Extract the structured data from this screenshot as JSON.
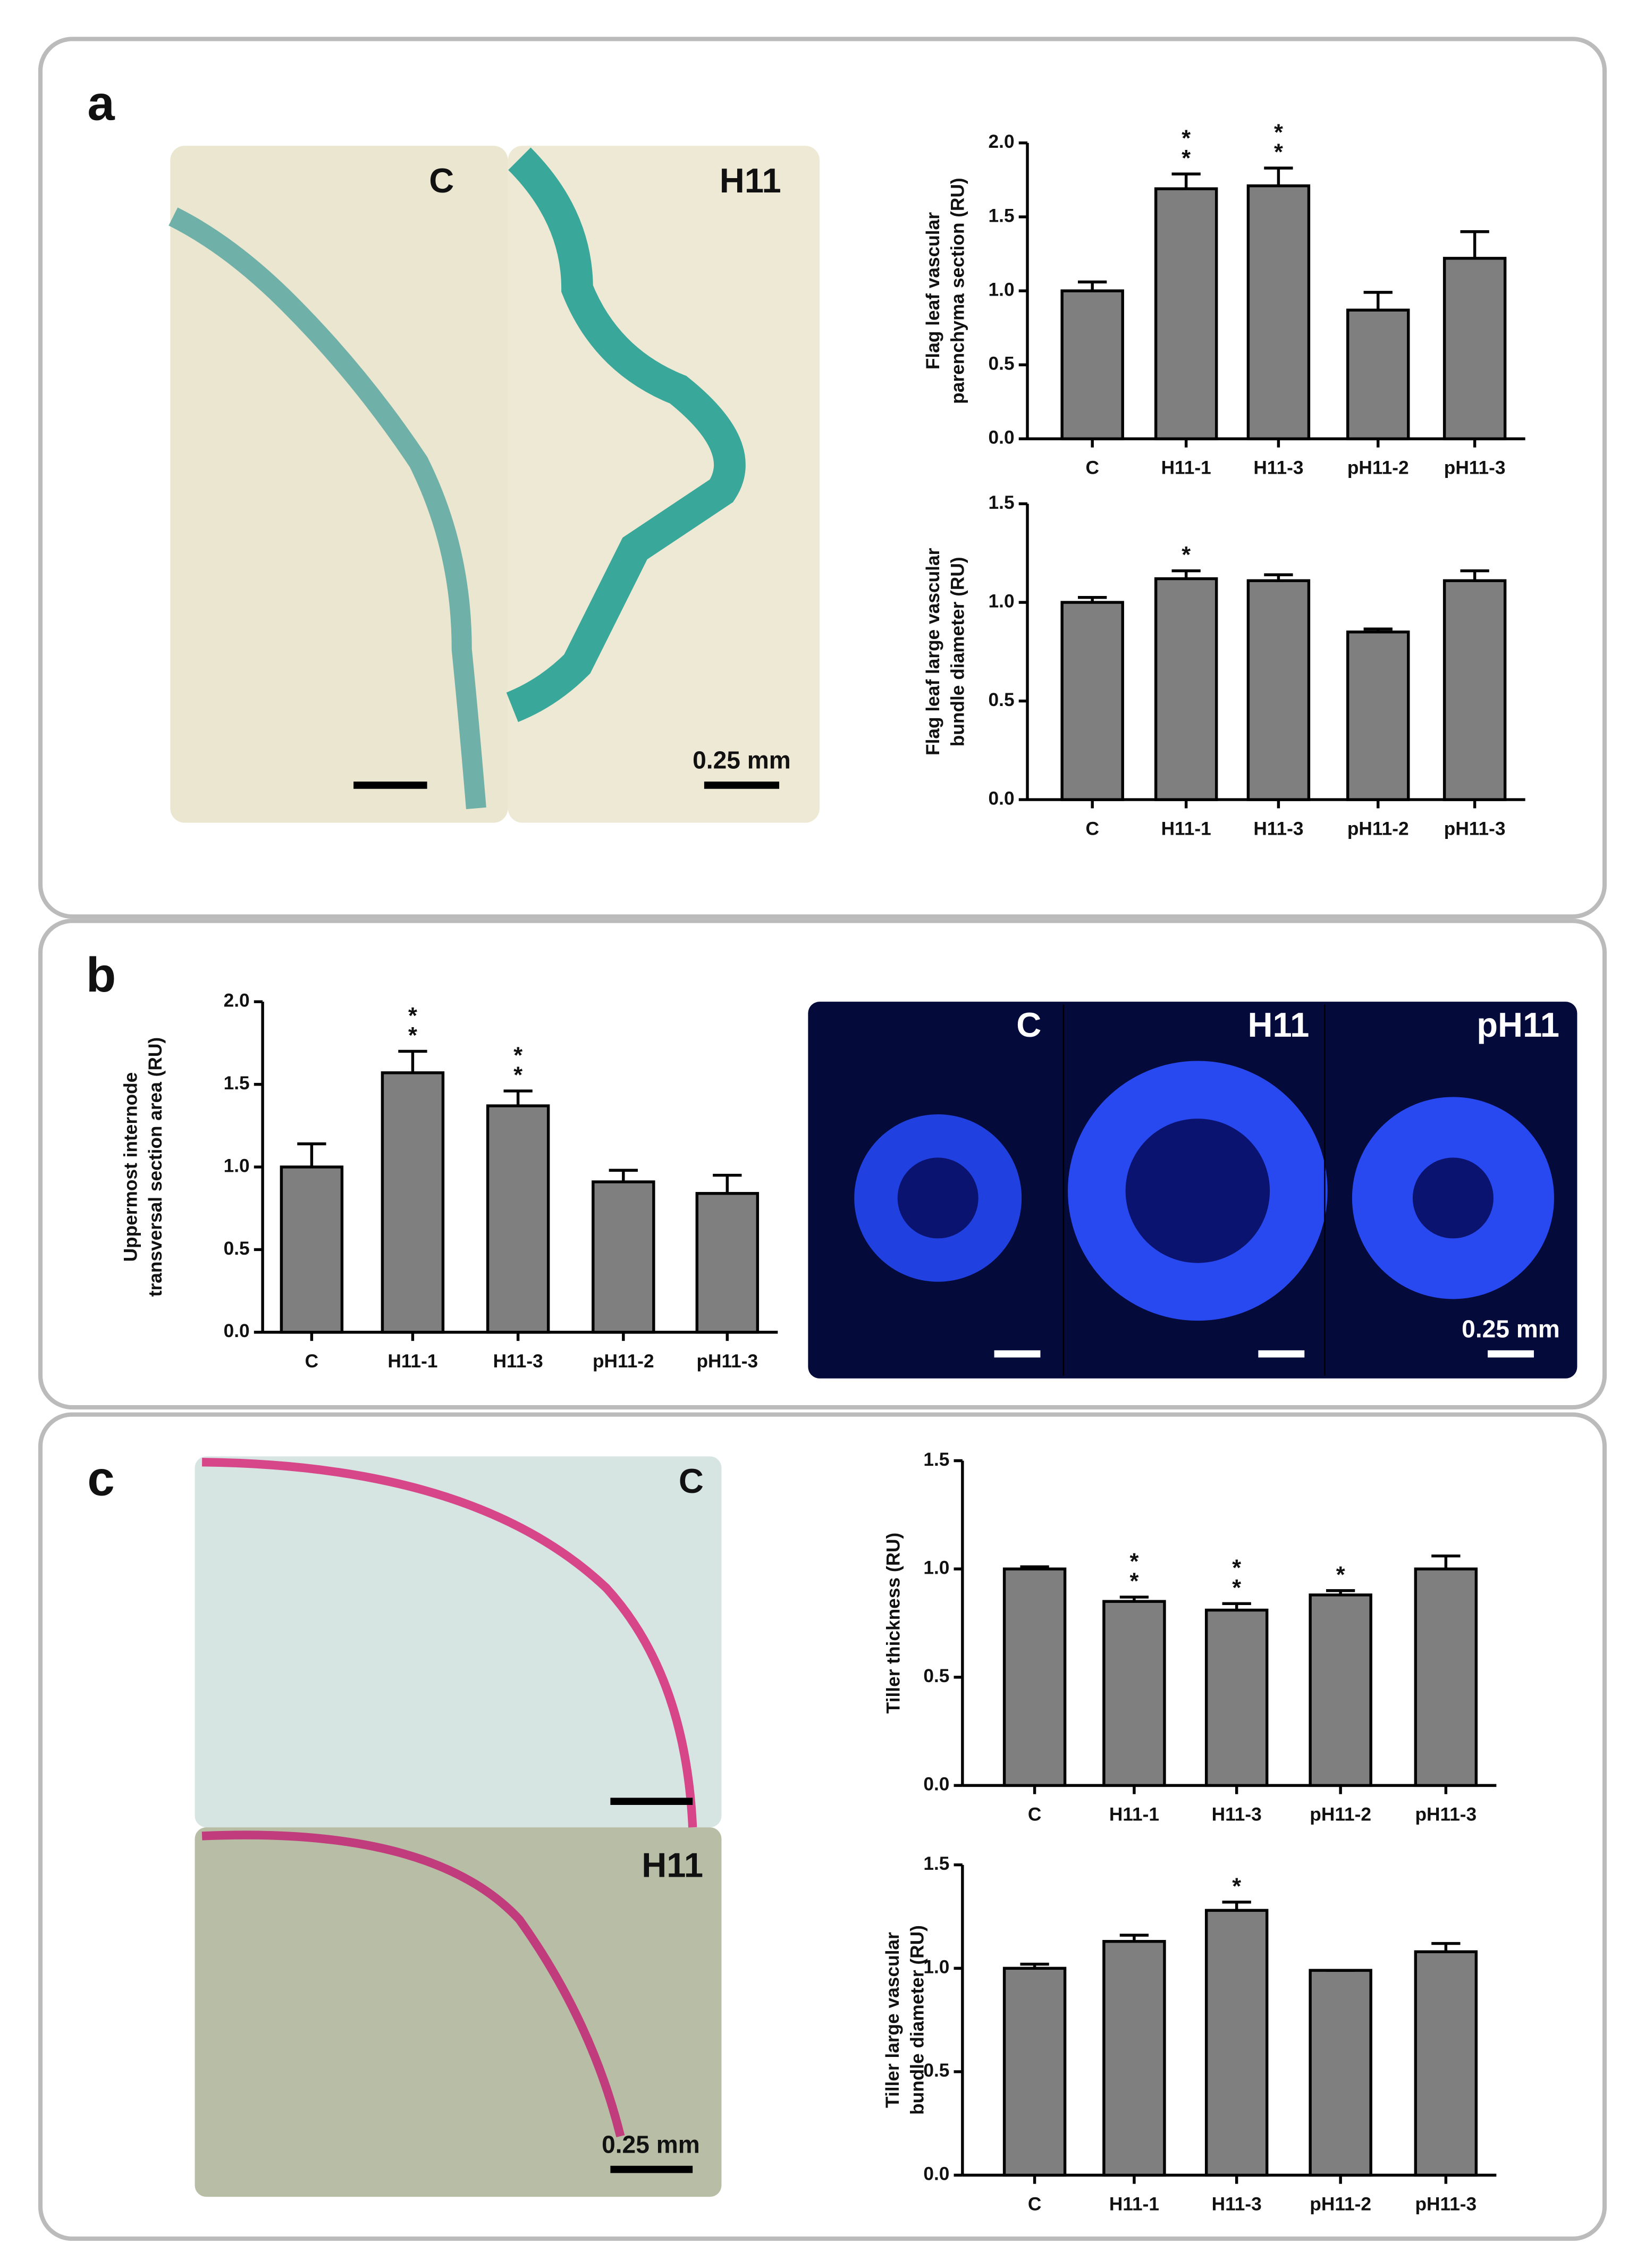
{
  "panels": [
    {
      "label": "a",
      "micrograph_labels": [
        "C",
        "H11"
      ],
      "scale_bar": "0.25 mm"
    },
    {
      "label": "b",
      "micrograph_labels": [
        "C",
        "H11",
        "pH11"
      ],
      "scale_bar": "0.25 mm"
    },
    {
      "label": "c",
      "micrograph_labels": [
        "C",
        "H11"
      ],
      "scale_bar": "0.25 mm"
    }
  ],
  "chart_data": [
    {
      "type": "bar",
      "ylabel": [
        "Flag leaf vascular",
        "parenchyma section (RU)"
      ],
      "categories": [
        "C",
        "H11-1",
        "H11-3",
        "pH11-2",
        "pH11-3"
      ],
      "values": [
        1.0,
        1.69,
        1.71,
        0.87,
        1.22
      ],
      "errors": [
        0.06,
        0.1,
        0.12,
        0.12,
        0.18
      ],
      "significance": [
        null,
        "**",
        "**",
        null,
        null
      ],
      "color": "#7f7f7f",
      "ylim": [
        0,
        2
      ],
      "yticks": [
        {
          "value": 0,
          "label": "0.0"
        },
        0.5,
        {
          "value": 1,
          "label": "1.0"
        },
        1.5,
        {
          "value": 2,
          "label": "2.0"
        }
      ]
    },
    {
      "type": "bar",
      "ylabel": [
        "Flag leaf large vascular",
        "bundle diameter (RU)"
      ],
      "categories": [
        "C",
        "H11-1",
        "H11-3",
        "pH11-2",
        "pH11-3"
      ],
      "values": [
        1.0,
        1.12,
        1.11,
        0.85,
        1.11
      ],
      "errors": [
        0.025,
        0.04,
        0.03,
        0.015,
        0.05
      ],
      "significance": [
        null,
        "*",
        null,
        null,
        null
      ],
      "color": "#7f7f7f",
      "ylim": [
        0,
        1.5
      ],
      "yticks": [
        {
          "value": 0,
          "label": "0.0"
        },
        0.5,
        {
          "value": 1,
          "label": "1.0"
        },
        1.5
      ]
    },
    {
      "type": "bar",
      "ylabel": [
        "Uppermost internode",
        "transversal section area (RU)"
      ],
      "categories": [
        "C",
        "H11-1",
        "H11-3",
        "pH11-2",
        "pH11-3"
      ],
      "values": [
        1.0,
        1.57,
        1.37,
        0.91,
        0.84
      ],
      "errors": [
        0.14,
        0.13,
        0.09,
        0.07,
        0.11
      ],
      "significance": [
        null,
        "**",
        "**",
        null,
        null
      ],
      "color": "#7f7f7f",
      "ylim": [
        0,
        2
      ],
      "yticks": [
        {
          "value": 0,
          "label": "0.0"
        },
        0.5,
        {
          "value": 1,
          "label": "1.0"
        },
        1.5,
        {
          "value": 2,
          "label": "2.0"
        }
      ]
    },
    {
      "type": "bar",
      "ylabel": [
        "Tiller thickness (RU)"
      ],
      "categories": [
        "C",
        "H11-1",
        "H11-3",
        "pH11-2",
        "pH11-3"
      ],
      "values": [
        1.0,
        0.85,
        0.81,
        0.88,
        1.0
      ],
      "errors": [
        0.01,
        0.02,
        0.03,
        0.02,
        0.06
      ],
      "significance": [
        null,
        "**",
        "**",
        "*",
        null
      ],
      "color": "#7f7f7f",
      "ylim": [
        0,
        1.5
      ],
      "yticks": [
        {
          "value": 0,
          "label": "0.0"
        },
        0.5,
        {
          "value": 1,
          "label": "1.0"
        },
        1.5
      ]
    },
    {
      "type": "bar",
      "ylabel": [
        "Tiller large vascular",
        "bundle diameter (RU)"
      ],
      "categories": [
        "C",
        "H11-1",
        "H11-3",
        "pH11-2",
        "pH11-3"
      ],
      "values": [
        1.0,
        1.13,
        1.28,
        0.99,
        1.08
      ],
      "errors": [
        0.02,
        0.03,
        0.04,
        0,
        0.04
      ],
      "significance": [
        null,
        null,
        "*",
        null,
        null
      ],
      "color": "#7f7f7f",
      "ylim": [
        0,
        1.5
      ],
      "yticks": [
        {
          "value": 0,
          "label": "0.0"
        },
        0.5,
        {
          "value": 1,
          "label": "1.0"
        },
        1.5
      ]
    }
  ]
}
